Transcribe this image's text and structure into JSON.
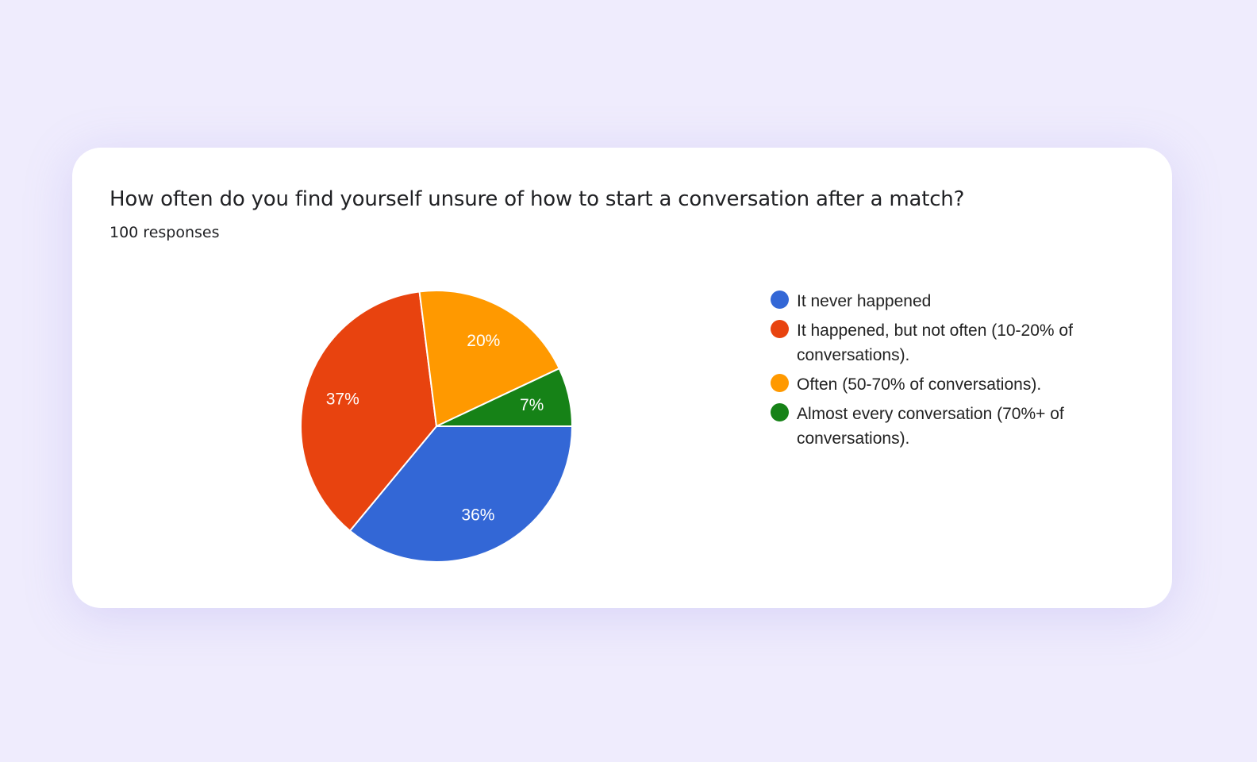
{
  "question": {
    "title": "How often do you find yourself unsure of how to start a conversation after a match?",
    "responses": "100 responses"
  },
  "legend": [
    {
      "label": "It never happened",
      "color": "#3367d6"
    },
    {
      "label": "It happened, but not often (10-20% of conversations).",
      "color": "#e8430f"
    },
    {
      "label": "Often (50-70% of conversations).",
      "color": "#ff9900"
    },
    {
      "label": "Almost every conversation (70%+ of conversations).",
      "color": "#168217"
    }
  ],
  "chart_data": {
    "type": "pie",
    "title": "How often do you find yourself unsure of how to start a conversation after a match?",
    "subtitle": "100 responses",
    "categories": [
      "It never happened",
      "It happened, but not often (10-20% of conversations).",
      "Often (50-70% of conversations).",
      "Almost every conversation (70%+ of conversations)."
    ],
    "values": [
      36,
      37,
      20,
      7
    ],
    "labels": [
      "36%",
      "37%",
      "20%",
      "7%"
    ],
    "colors": [
      "#3367d6",
      "#e8430f",
      "#ff9900",
      "#168217"
    ],
    "legend_position": "right"
  }
}
